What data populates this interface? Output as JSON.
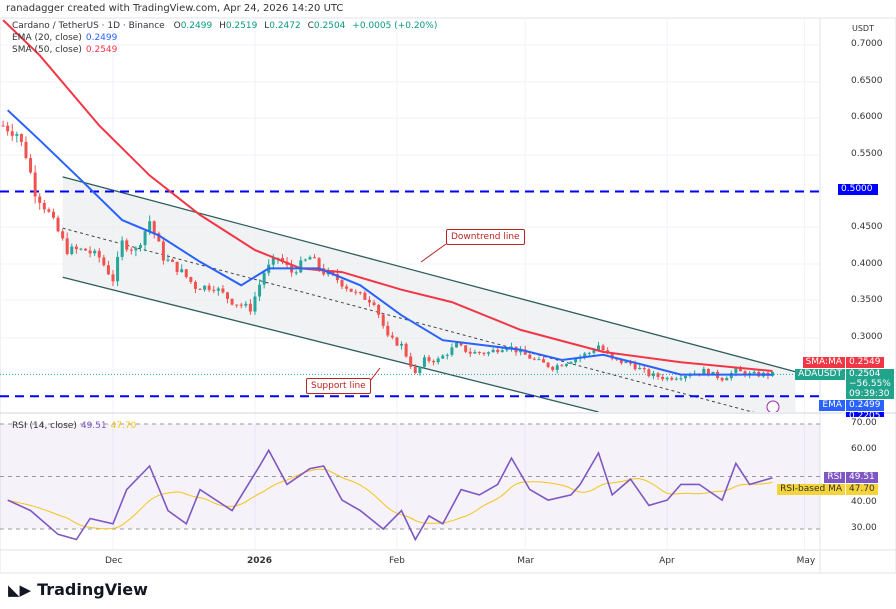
{
  "credit": "ranadagger created with TradingView.com, Apr 24, 2026 14:20 UTC",
  "legend": {
    "symbol": "Cardano / TetherUS · 1D · Binance",
    "o_label": "O",
    "o": "0.2499",
    "h_label": "H",
    "h": "0.2519",
    "l_label": "L",
    "l": "0.2472",
    "c_label": "C",
    "c": "0.2504",
    "change": "+0.0005 (+0.20%)",
    "ema_label": "EMA (20, close)",
    "ema": "0.2499",
    "sma_label": "SMA (50, close)",
    "sma": "0.2549",
    "rsi_label": "RSI (14, close)",
    "rsi": "49.51",
    "rsi_ma": "47.70"
  },
  "price_axis": {
    "currency": "USDT",
    "ticks": [
      "0.7000",
      "0.6500",
      "0.6000",
      "0.5500",
      "0.4500",
      "0.4000",
      "0.3500",
      "0.3000"
    ]
  },
  "tags": {
    "level_high": "0.5000",
    "sma_name": "SMA:MA",
    "sma_val": "0.2549",
    "sym_name": "ADAUSDT",
    "sym_val": "0.2504",
    "sym_pct": "−56.55%",
    "countdown": "09:39:30",
    "ema_name": "EMA",
    "ema_val": "0.2499",
    "level_low": "0.2205",
    "rsi_name": "RSI",
    "rsi_val": "49.51",
    "rsima_name": "RSI-based MA",
    "rsima_val": "47.70"
  },
  "rsi_axis": {
    "ticks": [
      "70.00",
      "60.00",
      "40.00",
      "30.00"
    ]
  },
  "time_axis": [
    "Dec",
    "2026",
    "Feb",
    "Mar",
    "Apr",
    "May"
  ],
  "callouts": {
    "downtrend": "Downtrend line",
    "support": "Support line"
  },
  "brand": "TradingView",
  "colors": {
    "up": "#26a69a",
    "down": "#ef5350",
    "ema": "#2962ff",
    "sma": "#f23645",
    "rsi": "#7e57c2",
    "rsi_ma": "#f5c518",
    "level": "#0000ff",
    "channel": "#2f5e5e"
  },
  "chart_data": {
    "type": "candlestick",
    "symbol": "ADAUSDT",
    "interval": "1D",
    "y_scale": "linear",
    "ylim": [
      0.2,
      0.75
    ],
    "close_path": [
      [
        "2025-11-07",
        0.59
      ],
      [
        "2025-11-10",
        0.58
      ],
      [
        "2025-11-12",
        0.55
      ],
      [
        "2025-11-14",
        0.5
      ],
      [
        "2025-11-17",
        0.47
      ],
      [
        "2025-11-21",
        0.42
      ],
      [
        "2025-11-25",
        0.42
      ],
      [
        "2025-11-28",
        0.41
      ],
      [
        "2025-12-01",
        0.38
      ],
      [
        "2025-12-03",
        0.43
      ],
      [
        "2025-12-06",
        0.42
      ],
      [
        "2025-12-09",
        0.46
      ],
      [
        "2025-12-12",
        0.41
      ],
      [
        "2025-12-16",
        0.39
      ],
      [
        "2025-12-19",
        0.37
      ],
      [
        "2025-12-23",
        0.37
      ],
      [
        "2025-12-27",
        0.35
      ],
      [
        "2025-12-31",
        0.34
      ],
      [
        "2026-01-03",
        0.39
      ],
      [
        "2026-01-06",
        0.41
      ],
      [
        "2026-01-09",
        0.39
      ],
      [
        "2026-01-13",
        0.41
      ],
      [
        "2026-01-16",
        0.39
      ],
      [
        "2026-01-19",
        0.38
      ],
      [
        "2026-01-23",
        0.36
      ],
      [
        "2026-01-27",
        0.35
      ],
      [
        "2026-01-30",
        0.3
      ],
      [
        "2026-02-02",
        0.29
      ],
      [
        "2026-02-05",
        0.25
      ],
      [
        "2026-02-07",
        0.27
      ],
      [
        "2026-02-10",
        0.27
      ],
      [
        "2026-02-14",
        0.29
      ],
      [
        "2026-02-17",
        0.28
      ],
      [
        "2026-02-21",
        0.28
      ],
      [
        "2026-02-25",
        0.29
      ],
      [
        "2026-02-28",
        0.28
      ],
      [
        "2026-03-03",
        0.27
      ],
      [
        "2026-03-07",
        0.26
      ],
      [
        "2026-03-11",
        0.27
      ],
      [
        "2026-03-15",
        0.28
      ],
      [
        "2026-03-17",
        0.29
      ],
      [
        "2026-03-20",
        0.27
      ],
      [
        "2026-03-24",
        0.265
      ],
      [
        "2026-03-28",
        0.25
      ],
      [
        "2026-04-01",
        0.245
      ],
      [
        "2026-04-05",
        0.25
      ],
      [
        "2026-04-09",
        0.255
      ],
      [
        "2026-04-13",
        0.245
      ],
      [
        "2026-04-16",
        0.255
      ],
      [
        "2026-04-19",
        0.25
      ],
      [
        "2026-04-24",
        0.2504
      ]
    ],
    "ema20": [
      [
        "2025-11-08",
        0.611
      ],
      [
        "2025-11-15",
        0.57
      ],
      [
        "2025-11-24",
        0.516
      ],
      [
        "2025-12-03",
        0.461
      ],
      [
        "2025-12-11",
        0.44
      ],
      [
        "2025-12-20",
        0.404
      ],
      [
        "2025-12-29",
        0.372
      ],
      [
        "2026-01-04",
        0.395
      ],
      [
        "2026-01-15",
        0.395
      ],
      [
        "2026-01-24",
        0.372
      ],
      [
        "2026-02-02",
        0.331
      ],
      [
        "2026-02-11",
        0.297
      ],
      [
        "2026-02-20",
        0.29
      ],
      [
        "2026-02-28",
        0.284
      ],
      [
        "2026-03-09",
        0.27
      ],
      [
        "2026-03-18",
        0.277
      ],
      [
        "2026-03-27",
        0.263
      ],
      [
        "2026-04-04",
        0.25
      ],
      [
        "2026-04-13",
        0.25
      ],
      [
        "2026-04-24",
        0.2499
      ]
    ],
    "sma50": [
      [
        "2025-11-07",
        0.734
      ],
      [
        "2025-11-15",
        0.686
      ],
      [
        "2025-11-28",
        0.59
      ],
      [
        "2025-12-09",
        0.522
      ],
      [
        "2025-12-20",
        0.468
      ],
      [
        "2026-01-01",
        0.42
      ],
      [
        "2026-01-11",
        0.395
      ],
      [
        "2026-01-20",
        0.39
      ],
      [
        "2026-02-02",
        0.366
      ],
      [
        "2026-02-13",
        0.349
      ],
      [
        "2026-02-28",
        0.311
      ],
      [
        "2026-03-18",
        0.281
      ],
      [
        "2026-04-04",
        0.267
      ],
      [
        "2026-04-24",
        0.2549
      ]
    ],
    "rsi14": [
      [
        "2025-11-08",
        41
      ],
      [
        "2025-11-13",
        37
      ],
      [
        "2025-11-19",
        28
      ],
      [
        "2025-11-23",
        26
      ],
      [
        "2025-11-26",
        34
      ],
      [
        "2025-12-01",
        32
      ],
      [
        "2025-12-04",
        45
      ],
      [
        "2025-12-09",
        54
      ],
      [
        "2025-12-13",
        37
      ],
      [
        "2025-12-17",
        32
      ],
      [
        "2025-12-20",
        45
      ],
      [
        "2025-12-27",
        37
      ],
      [
        "2026-01-02",
        54
      ],
      [
        "2026-01-04",
        60
      ],
      [
        "2026-01-08",
        47
      ],
      [
        "2026-01-13",
        53
      ],
      [
        "2026-01-16",
        54
      ],
      [
        "2026-01-20",
        41
      ],
      [
        "2026-01-24",
        37
      ],
      [
        "2026-01-29",
        30
      ],
      [
        "2026-02-02",
        37
      ],
      [
        "2026-02-05",
        26
      ],
      [
        "2026-02-08",
        35
      ],
      [
        "2026-02-11",
        32
      ],
      [
        "2026-02-15",
        45
      ],
      [
        "2026-02-19",
        43
      ],
      [
        "2026-02-23",
        47
      ],
      [
        "2026-02-26",
        57
      ],
      [
        "2026-03-02",
        45
      ],
      [
        "2026-03-06",
        41
      ],
      [
        "2026-03-11",
        43
      ],
      [
        "2026-03-13",
        47
      ],
      [
        "2026-03-17",
        59
      ],
      [
        "2026-03-20",
        43
      ],
      [
        "2026-03-24",
        49
      ],
      [
        "2026-03-28",
        39
      ],
      [
        "2026-04-01",
        41
      ],
      [
        "2026-04-04",
        47
      ],
      [
        "2026-04-08",
        47
      ],
      [
        "2026-04-13",
        41
      ],
      [
        "2026-04-16",
        55
      ],
      [
        "2026-04-19",
        47
      ],
      [
        "2026-04-24",
        49.51
      ]
    ],
    "rsi_levels": [
      70,
      30
    ],
    "horizontal_levels": [
      0.5,
      0.2205
    ],
    "channel": {
      "upper": [
        [
          "2025-11-20",
          0.52
        ],
        [
          "2026-04-29",
          0.254
        ]
      ],
      "lower": [
        [
          "2025-11-20",
          0.383
        ],
        [
          "2026-03-17",
          0.199
        ]
      ],
      "mid": [
        [
          "2025-11-20",
          0.45
        ],
        [
          "2026-04-28",
          0.185
        ]
      ]
    }
  }
}
